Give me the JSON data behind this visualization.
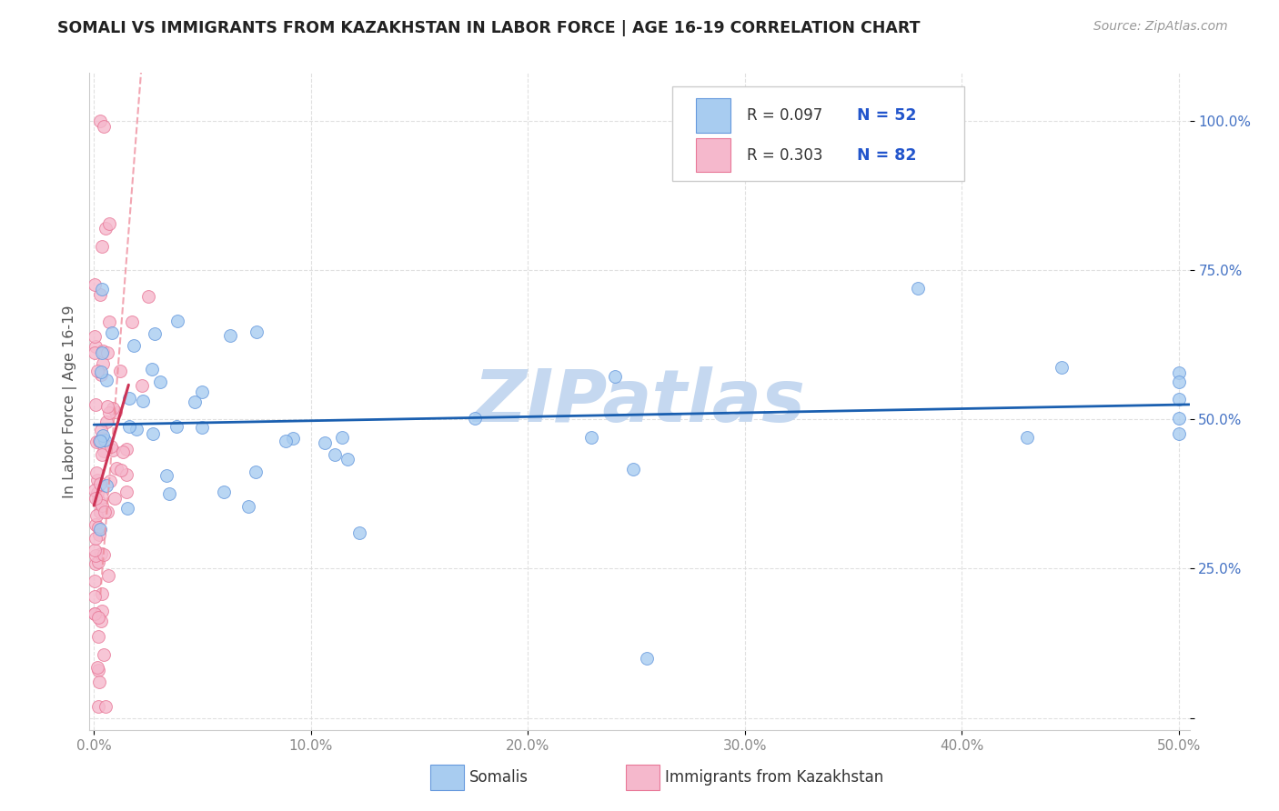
{
  "title": "SOMALI VS IMMIGRANTS FROM KAZAKHSTAN IN LABOR FORCE | AGE 16-19 CORRELATION CHART",
  "source": "Source: ZipAtlas.com",
  "ylabel": "In Labor Force | Age 16-19",
  "xlim": [
    -0.002,
    0.505
  ],
  "ylim": [
    -0.02,
    1.08
  ],
  "xticks": [
    0.0,
    0.1,
    0.2,
    0.3,
    0.4,
    0.5
  ],
  "xticklabels": [
    "0.0%",
    "10.0%",
    "20.0%",
    "30.0%",
    "40.0%",
    "50.0%"
  ],
  "yticks": [
    0.0,
    0.25,
    0.5,
    0.75,
    1.0
  ],
  "yticklabels": [
    "",
    "25.0%",
    "50.0%",
    "75.0%",
    "100.0%"
  ],
  "blue_fill": "#A8CCF0",
  "blue_edge": "#6699DD",
  "pink_fill": "#F5B8CC",
  "pink_edge": "#E87898",
  "trend_blue_color": "#1A5FB0",
  "trend_pink_solid": "#CC3355",
  "trend_pink_dash": "#EE8899",
  "watermark_color": "#C5D8F0",
  "R_blue": 0.097,
  "N_blue": 52,
  "R_pink": 0.303,
  "N_pink": 82,
  "grid_color": "#DDDDDD",
  "tick_color": "#888888",
  "ytick_color": "#4472C4",
  "title_color": "#222222",
  "source_color": "#999999",
  "legend_box_color": "#CCCCCC",
  "marker_size": 100
}
